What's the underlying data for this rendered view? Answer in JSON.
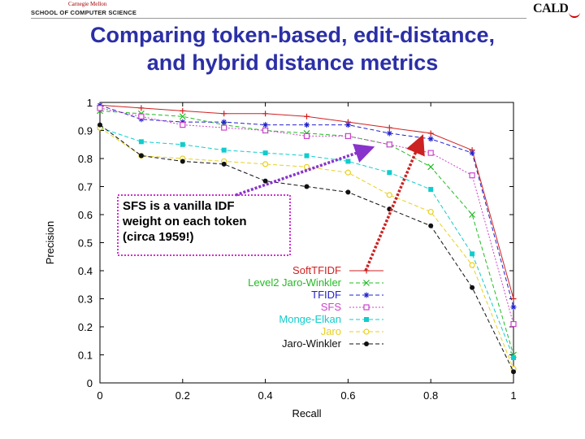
{
  "header": {
    "university_small": "Carnegie Mellon",
    "school": "SCHOOL OF COMPUTER SCIENCE",
    "logo": "CALD"
  },
  "slide": {
    "title_line1": "Comparing token-based, edit-distance,",
    "title_line2": "and hybrid distance metrics"
  },
  "chart_data": {
    "type": "line",
    "xlabel": "Recall",
    "ylabel": "Precision",
    "xlim": [
      0,
      1
    ],
    "ylim": [
      0,
      1
    ],
    "x_ticks": [
      0,
      0.2,
      0.4,
      0.6,
      0.8,
      1
    ],
    "x_tick_labels": [
      "0",
      "0.2",
      "0.4",
      "0.6",
      "0.8",
      "1"
    ],
    "y_ticks": [
      0,
      0.1,
      0.2,
      0.3,
      0.4,
      0.5,
      0.6,
      0.7,
      0.8,
      0.9,
      1
    ],
    "y_tick_labels": [
      "0",
      "0.1",
      "0.2",
      "0.3",
      "0.4",
      "0.5",
      "0.6",
      "0.7",
      "0.8",
      "0.9",
      "1"
    ],
    "grid": false,
    "legend_position": "lower-middle",
    "x": [
      0,
      0.1,
      0.2,
      0.3,
      0.4,
      0.5,
      0.6,
      0.7,
      0.8,
      0.9,
      1
    ],
    "series": [
      {
        "name": "SoftTFIDF",
        "color": "#d02020",
        "marker": "plus",
        "dash": "solid",
        "values": [
          0.99,
          0.98,
          0.97,
          0.96,
          0.96,
          0.95,
          0.93,
          0.91,
          0.89,
          0.83,
          0.3
        ]
      },
      {
        "name": "Level2 Jaro-Winkler",
        "color": "#22bb22",
        "marker": "x",
        "dash": "dashed",
        "values": [
          0.97,
          0.96,
          0.95,
          0.92,
          0.9,
          0.89,
          0.88,
          0.85,
          0.77,
          0.6,
          0.1
        ]
      },
      {
        "name": "TFIDF",
        "color": "#2222cc",
        "marker": "star",
        "dash": "dashed",
        "values": [
          0.99,
          0.94,
          0.93,
          0.93,
          0.92,
          0.92,
          0.92,
          0.89,
          0.87,
          0.82,
          0.27
        ]
      },
      {
        "name": "SFS",
        "color": "#cc44cc",
        "marker": "square-open",
        "dash": "dotted",
        "values": [
          0.98,
          0.95,
          0.92,
          0.91,
          0.9,
          0.88,
          0.88,
          0.85,
          0.82,
          0.74,
          0.21
        ]
      },
      {
        "name": "Monge-Elkan",
        "color": "#11cccc",
        "marker": "square",
        "dash": "dashed",
        "values": [
          0.91,
          0.86,
          0.85,
          0.83,
          0.82,
          0.81,
          0.79,
          0.75,
          0.69,
          0.46,
          0.09
        ]
      },
      {
        "name": "Jaro",
        "color": "#e8d020",
        "marker": "circle-open",
        "dash": "dashed",
        "values": [
          0.91,
          0.81,
          0.8,
          0.79,
          0.78,
          0.77,
          0.75,
          0.67,
          0.61,
          0.42,
          0.05
        ]
      },
      {
        "name": "Jaro-Winkler",
        "color": "#111111",
        "marker": "circle",
        "dash": "dashed",
        "values": [
          0.92,
          0.81,
          0.79,
          0.78,
          0.72,
          0.7,
          0.68,
          0.62,
          0.56,
          0.34,
          0.04
        ]
      }
    ],
    "annotation": {
      "lines": [
        "SFS is a vanilla IDF",
        "weight on each token",
        "(circa 1959!)"
      ],
      "box_color": "#cc33cc",
      "purple_arrow_to": [
        0.66,
        0.84
      ],
      "red_arrow_to": [
        0.78,
        0.88
      ]
    }
  }
}
